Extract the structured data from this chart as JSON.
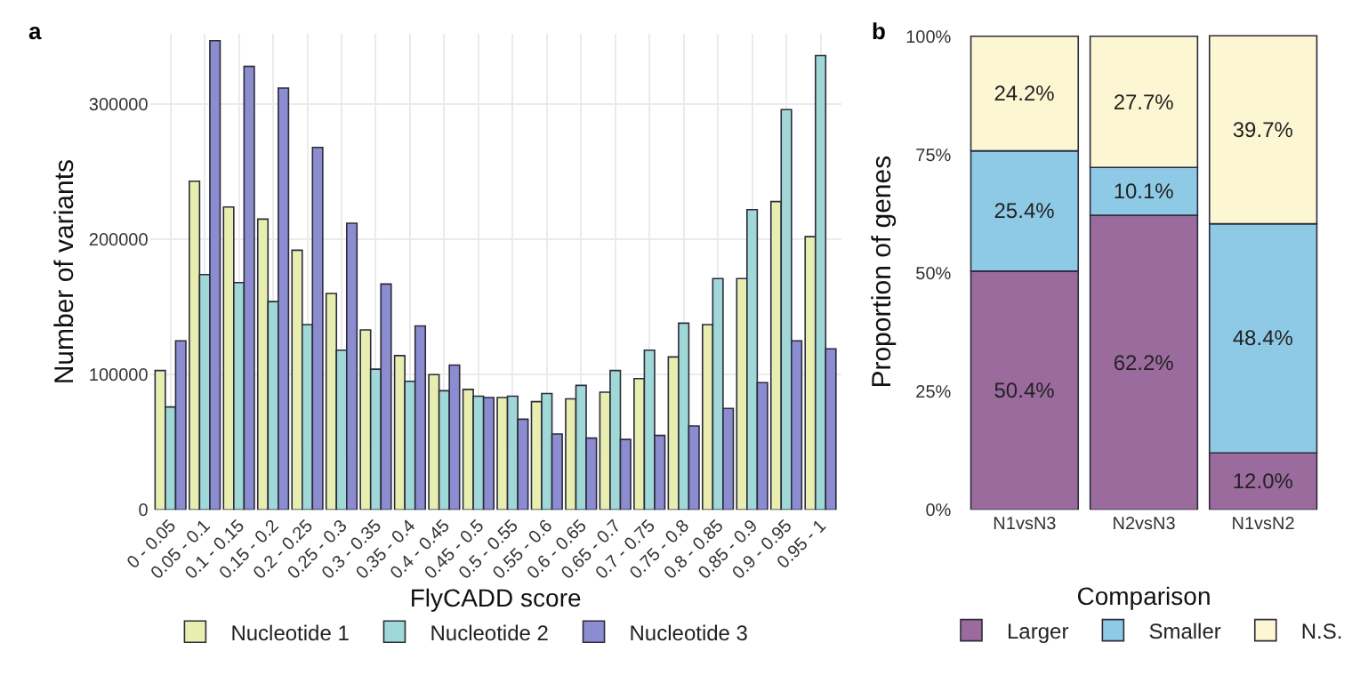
{
  "chart_data": [
    {
      "type": "bar",
      "title": "a",
      "xlabel": "FlyCADD score",
      "ylabel": "Number of variants",
      "categories": [
        "0 - 0.05",
        "0.05 - 0.1",
        "0.1 - 0.15",
        "0.15 - 0.2",
        "0.2 - 0.25",
        "0.25 - 0.3",
        "0.3 - 0.35",
        "0.35 - 0.4",
        "0.4 - 0.45",
        "0.45 - 0.5",
        "0.5 - 0.55",
        "0.55 - 0.6",
        "0.6 - 0.65",
        "0.65 - 0.7",
        "0.7 - 0.75",
        "0.75 - 0.8",
        "0.8 - 0.85",
        "0.85 - 0.9",
        "0.9 - 0.95",
        "0.95 - 1"
      ],
      "series": [
        {
          "name": "Nucleotide 1",
          "color": "#e8eeb0",
          "values": [
            103000,
            243000,
            224000,
            215000,
            192000,
            160000,
            133000,
            114000,
            100000,
            89000,
            83000,
            80000,
            82000,
            87000,
            97000,
            113000,
            137000,
            171000,
            228000,
            202000
          ]
        },
        {
          "name": "Nucleotide 2",
          "color": "#a0d8d8",
          "values": [
            76000,
            174000,
            168000,
            154000,
            137000,
            118000,
            104000,
            95000,
            88000,
            84000,
            84000,
            86000,
            92000,
            103000,
            118000,
            138000,
            171000,
            222000,
            296000,
            336000
          ]
        },
        {
          "name": "Nucleotide 3",
          "color": "#8c8cd0",
          "values": [
            125000,
            347000,
            328000,
            312000,
            268000,
            212000,
            167000,
            136000,
            107000,
            83000,
            67000,
            56000,
            53000,
            52000,
            55000,
            62000,
            75000,
            94000,
            125000,
            119000
          ]
        }
      ],
      "ylim": [
        0,
        352000
      ],
      "yticks": [
        0,
        100000,
        200000,
        300000
      ],
      "grid": true,
      "legend": "bottom"
    },
    {
      "type": "bar",
      "title": "b",
      "ylabel": "Proportion of genes",
      "legend_title": "Comparison",
      "stacked": true,
      "data_labels": false,
      "categories": [
        "N1vsN3",
        "N2vsN3",
        "N1vsN2"
      ],
      "series": [
        {
          "name": "Larger",
          "color": "#9b6b9e",
          "values": [
            50.4,
            62.2,
            12.0
          ],
          "value_labels": [
            "50.4%",
            "62.2%",
            "12.0%"
          ]
        },
        {
          "name": "Smaller",
          "color": "#8ecae6",
          "values": [
            25.4,
            10.1,
            48.4
          ],
          "value_labels": [
            "25.4%",
            "10.1%",
            "48.4%"
          ]
        },
        {
          "name": "N.S.",
          "color": "#fdf6d3",
          "values": [
            24.2,
            27.7,
            39.7
          ],
          "value_labels": [
            "24.2%",
            "27.7%",
            "39.7%"
          ]
        }
      ],
      "ylim": [
        0,
        100.5
      ],
      "yticks": [
        {
          "value": 0,
          "label": "0%"
        },
        {
          "value": 25,
          "label": "25%"
        },
        {
          "value": 50,
          "label": "50%"
        },
        {
          "value": 75,
          "label": "75%"
        },
        {
          "value": 100,
          "label": "100%"
        }
      ],
      "grid": false,
      "legend": "bottom"
    }
  ]
}
